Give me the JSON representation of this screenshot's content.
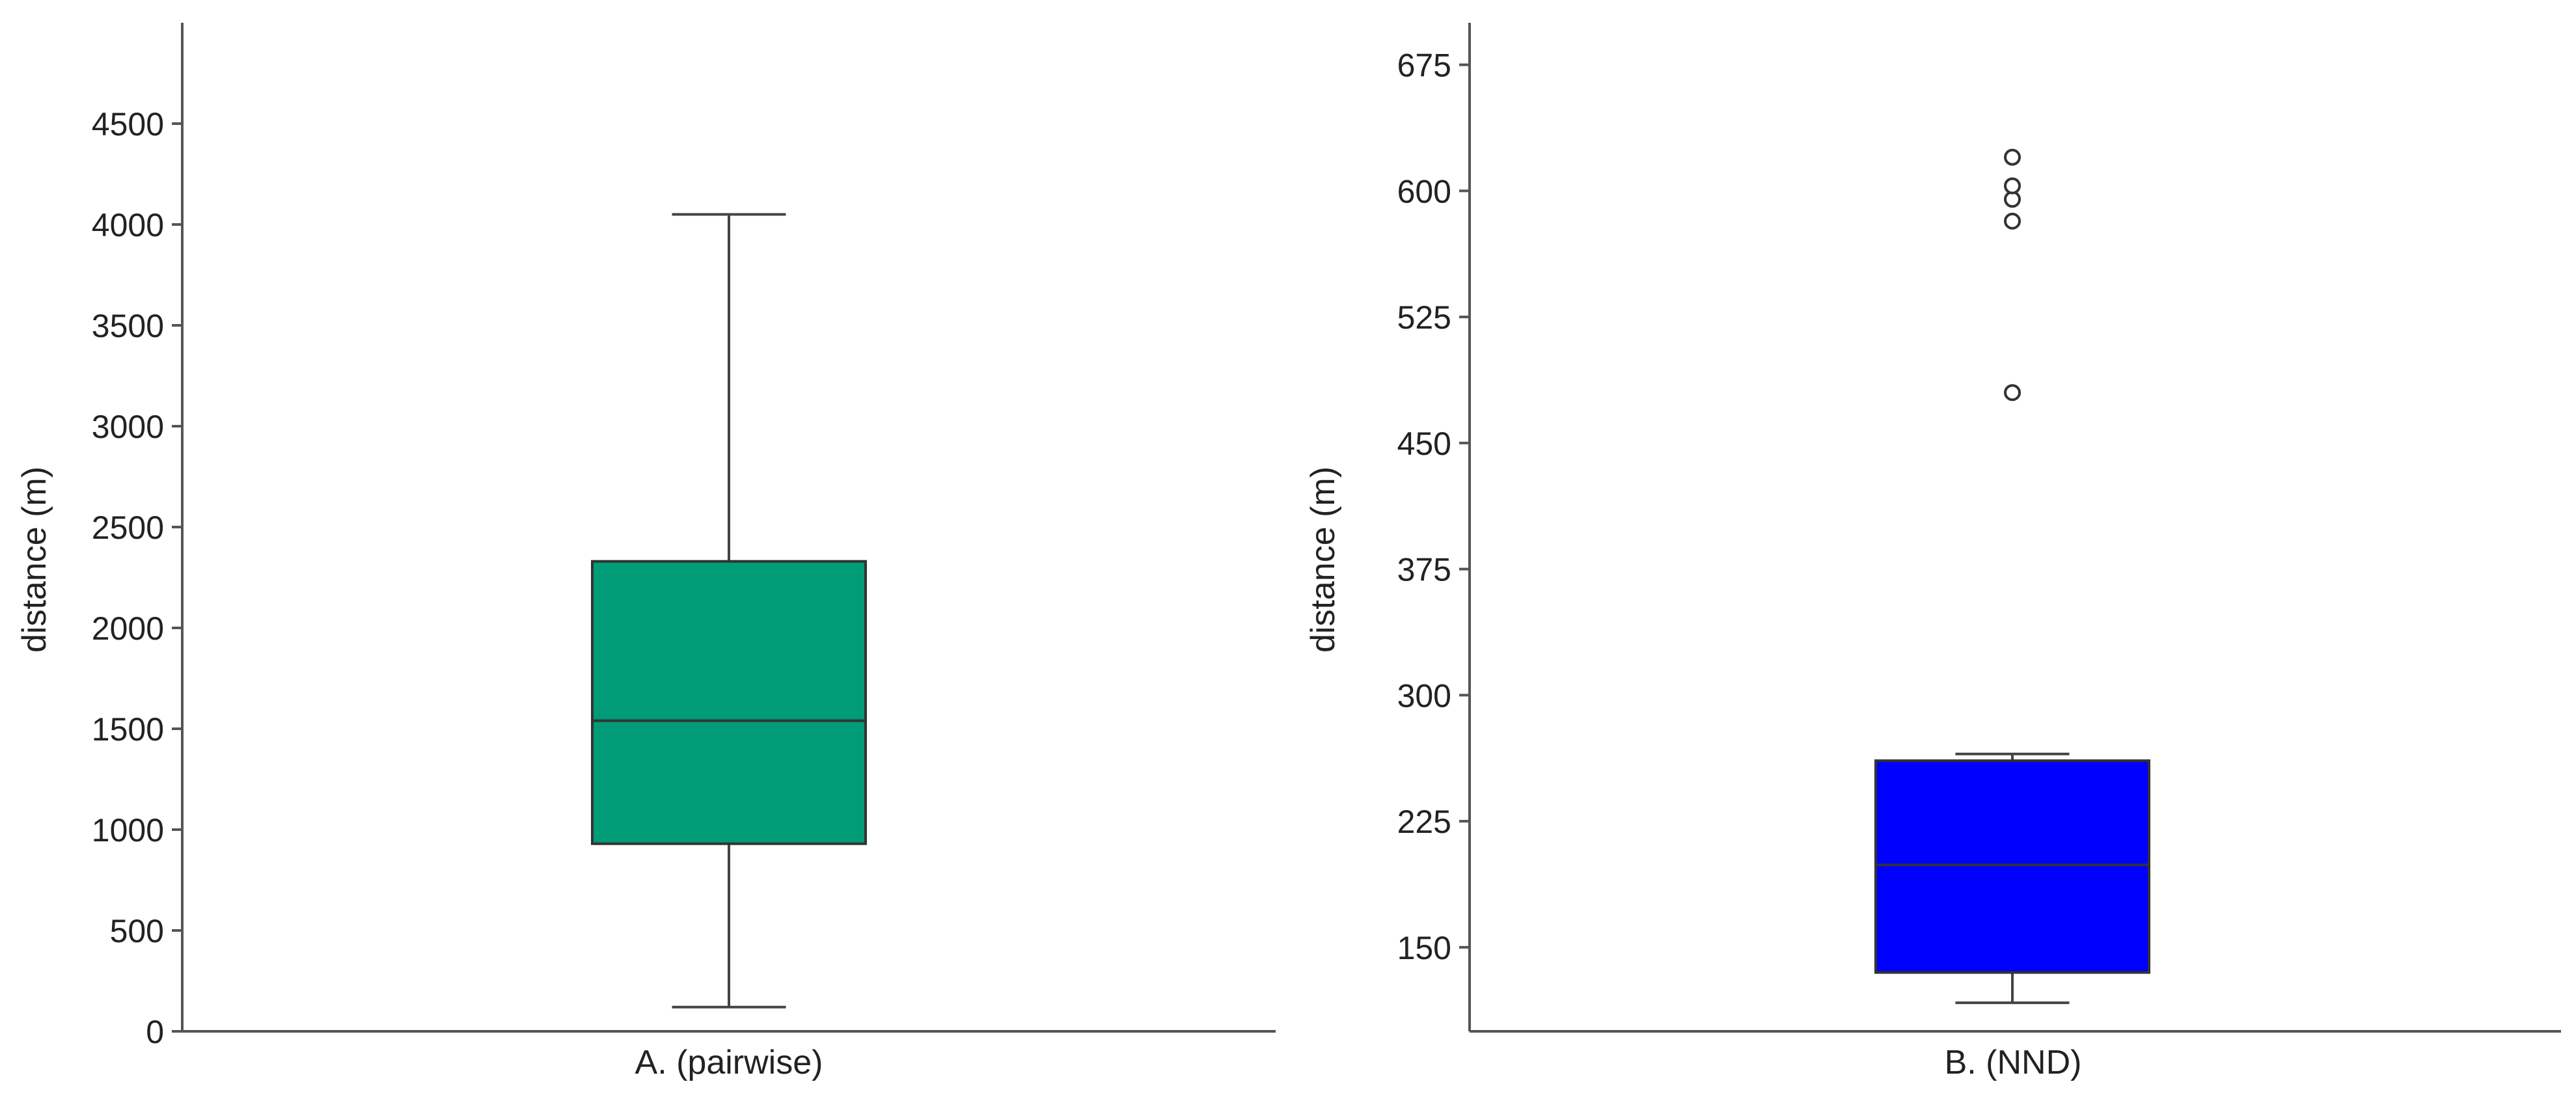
{
  "chart_data": [
    {
      "type": "box",
      "panel": "A",
      "categories": [
        "A. (pairwise)"
      ],
      "ylabel": "distance (m)",
      "ylim": [
        0,
        5000
      ],
      "yticks": [
        0,
        500,
        1000,
        1500,
        2000,
        2500,
        3000,
        3500,
        4000,
        4500
      ],
      "color": "#009b77",
      "boxes": [
        {
          "category": "A. (pairwise)",
          "whisker_low": 120,
          "q1": 930,
          "median": 1540,
          "q3": 2330,
          "whisker_high": 4050,
          "outliers": []
        }
      ]
    },
    {
      "type": "box",
      "panel": "B",
      "categories": [
        "B. (NND)"
      ],
      "ylabel": "distance (m)",
      "ylim": [
        100,
        700
      ],
      "yticks": [
        150,
        225,
        300,
        375,
        450,
        525,
        600,
        675
      ],
      "color": "#0000ff",
      "boxes": [
        {
          "category": "B. (NND)",
          "whisker_low": 117,
          "q1": 135,
          "median": 199,
          "q3": 261,
          "whisker_high": 265,
          "outliers": [
            480,
            582,
            595,
            603,
            620
          ]
        }
      ]
    }
  ]
}
